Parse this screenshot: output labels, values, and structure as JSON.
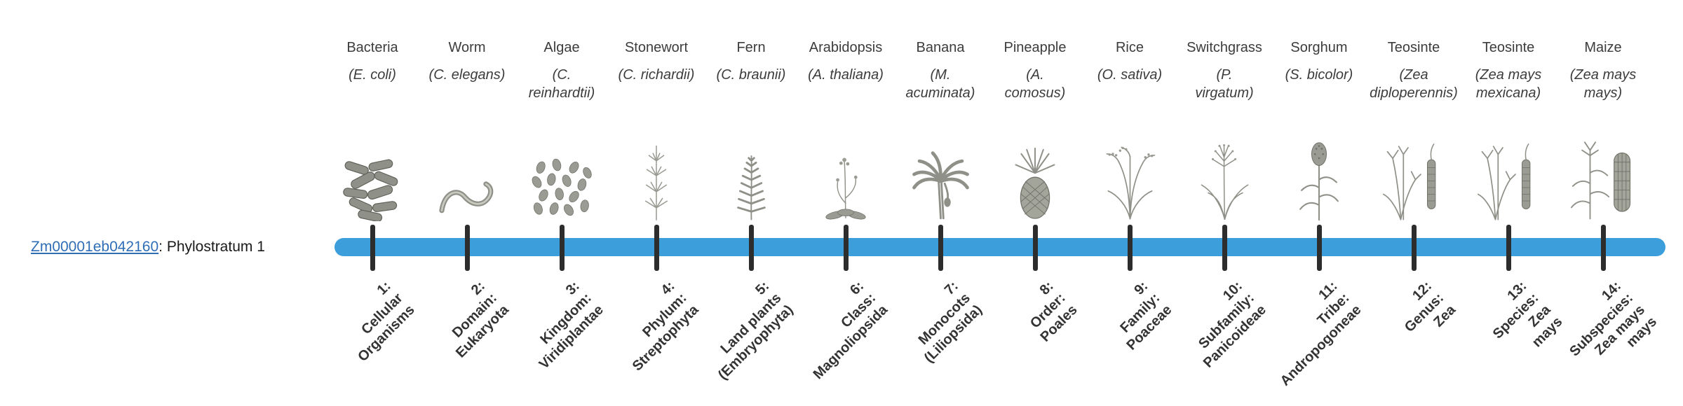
{
  "page": {
    "background": "#ffffff"
  },
  "gene": {
    "id": "Zm00001eb042160",
    "label_suffix": ": Phylostratum 1"
  },
  "timeline": {
    "bar_color": "#3d9edc",
    "tick_color": "#2d2d2d"
  },
  "organisms": [
    {
      "name": "Bacteria",
      "sci": "(E. coli)",
      "icon": "bacteria-icon",
      "tick_label": "1:\nCellular\nOrganisms"
    },
    {
      "name": "Worm",
      "sci": "(C. elegans)",
      "icon": "worm-icon",
      "tick_label": "2:\nDomain:\nEukaryota"
    },
    {
      "name": "Algae",
      "sci": "(C.\nreinhardtii)",
      "icon": "algae-icon",
      "tick_label": "3:\nKingdom:\nViridiplantae"
    },
    {
      "name": "Stonewort",
      "sci": "(C. richardii)",
      "icon": "stonewort-icon",
      "tick_label": "4:\nPhylum:\nStreptophyta"
    },
    {
      "name": "Fern",
      "sci": "(C. braunii)",
      "icon": "fern-icon",
      "tick_label": "5:\nLand plants\n(Embryophyta)"
    },
    {
      "name": "Arabidopsis",
      "sci": "(A. thaliana)",
      "icon": "arabidopsis-icon",
      "tick_label": "6:\nClass:\nMagnoliopsida"
    },
    {
      "name": "Banana",
      "sci": "(M.\nacuminata)",
      "icon": "banana-icon",
      "tick_label": "7:\nMonocots\n(Liliopsida)"
    },
    {
      "name": "Pineapple",
      "sci": "(A.\ncomosus)",
      "icon": "pineapple-icon",
      "tick_label": "8:\nOrder:\nPoales"
    },
    {
      "name": "Rice",
      "sci": "(O. sativa)",
      "icon": "rice-icon",
      "tick_label": "9:\nFamily:\nPoaceae"
    },
    {
      "name": "Switchgrass",
      "sci": "(P.\nvirgatum)",
      "icon": "switchgrass-icon",
      "tick_label": "10:\nSubfamily:\nPanicoideae"
    },
    {
      "name": "Sorghum",
      "sci": "(S. bicolor)",
      "icon": "sorghum-icon",
      "tick_label": "11:\nTribe:\nAndropogoneae"
    },
    {
      "name": "Teosinte",
      "sci": "(Zea\ndiploperennis)",
      "icon": "teosinte-icon",
      "tick_label": "12:\nGenus:\nZea"
    },
    {
      "name": "Teosinte",
      "sci": "(Zea mays\nmexicana)",
      "icon": "teosinte-icon",
      "tick_label": "13:\nSpecies:\nZea\nmays"
    },
    {
      "name": "Maize",
      "sci": "(Zea mays\nmays)",
      "icon": "maize-icon",
      "tick_label": "14:\nSubspecies:\nZea mays\nmays"
    }
  ]
}
